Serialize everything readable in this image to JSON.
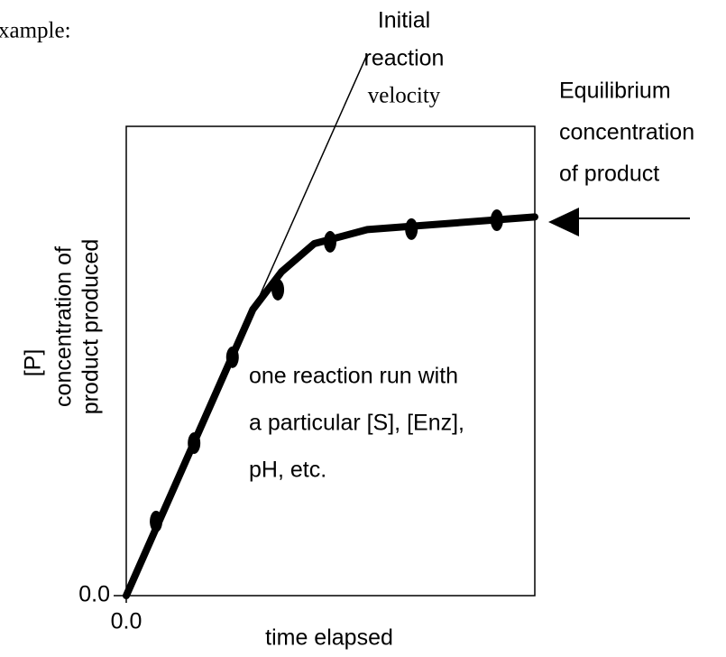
{
  "chart_data": {
    "type": "line",
    "xlabel": "time elapsed",
    "ylabel": [
      "[P]",
      "concentration of",
      "product produced"
    ],
    "xlim": [
      0,
      10
    ],
    "ylim": [
      0,
      10
    ],
    "xticks": [
      {
        "value": 0,
        "label": "0.0"
      }
    ],
    "yticks": [
      {
        "value": 0,
        "label": "0.0"
      }
    ],
    "x": [
      0.73,
      1.66,
      2.6,
      3.71,
      4.99,
      6.98,
      9.07
    ],
    "values": [
      1.58,
      3.25,
      5.08,
      6.52,
      7.54,
      7.81,
      8.0
    ],
    "curve": {
      "x": [
        0,
        3.1,
        3.8,
        4.6,
        5.9,
        10
      ],
      "y": [
        0,
        6.1,
        6.9,
        7.5,
        7.8,
        8.07
      ]
    },
    "tangent": {
      "x": [
        0,
        5.9
      ],
      "y": [
        0,
        11.54
      ]
    },
    "color": "#000000",
    "annotations": [
      {
        "lines": [
          "xample:"
        ]
      },
      {
        "lines": [
          "Initial",
          "reaction",
          "velocity"
        ]
      },
      {
        "lines": [
          "Equilibrium",
          "concentration",
          "of product"
        ]
      },
      {
        "lines": [
          "one reaction run with",
          "a particular [S], [Enz],",
          "pH, etc."
        ]
      }
    ]
  }
}
